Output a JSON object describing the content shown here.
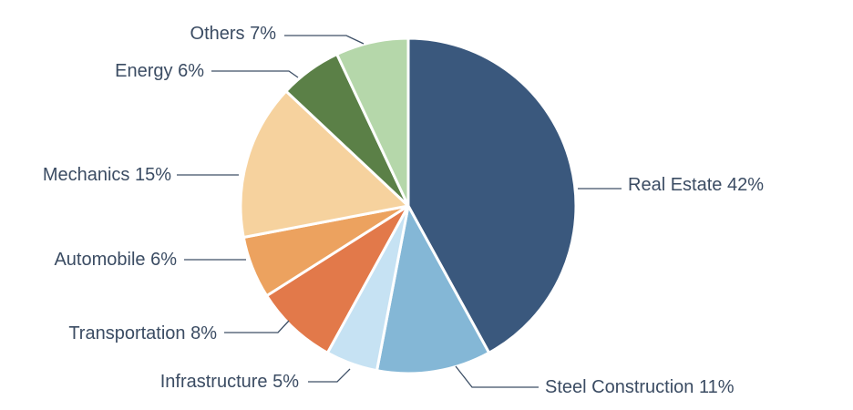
{
  "chart_data": {
    "type": "pie",
    "title": "",
    "slices": [
      {
        "label": "Real Estate 42%",
        "name": "Real Estate",
        "value": 42,
        "color": "#3a587d"
      },
      {
        "label": "Steel Construction 11%",
        "name": "Steel Construction",
        "value": 11,
        "color": "#84b7d6"
      },
      {
        "label": "Infrastructure 5%",
        "name": "Infrastructure",
        "value": 5,
        "color": "#c6e2f3"
      },
      {
        "label": "Transportation 8%",
        "name": "Transportation",
        "value": 8,
        "color": "#e2794a"
      },
      {
        "label": "Automobile 6%",
        "name": "Automobile",
        "value": 6,
        "color": "#eca25f"
      },
      {
        "label": "Mechanics 15%",
        "name": "Mechanics",
        "value": 15,
        "color": "#f6d29e"
      },
      {
        "label": "Energy 6%",
        "name": "Energy",
        "value": 6,
        "color": "#5b8047"
      },
      {
        "label": "Others 7%",
        "name": "Others",
        "value": 7,
        "color": "#b5d7aa"
      }
    ],
    "start_position": "top",
    "direction": "clockwise",
    "legend": "none"
  }
}
